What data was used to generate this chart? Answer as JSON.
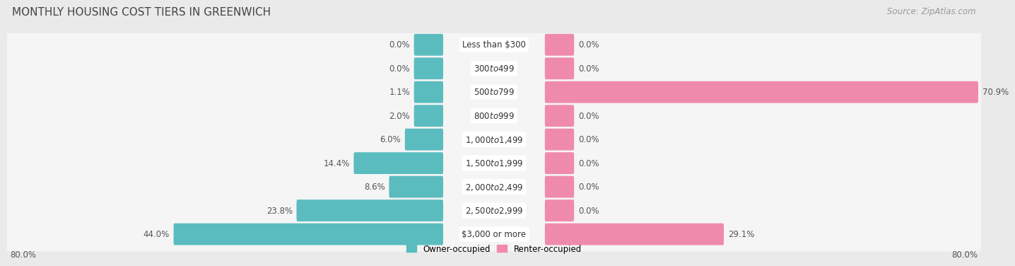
{
  "title": "MONTHLY HOUSING COST TIERS IN GREENWICH",
  "source": "Source: ZipAtlas.com",
  "categories": [
    "Less than $300",
    "$300 to $499",
    "$500 to $799",
    "$800 to $999",
    "$1,000 to $1,499",
    "$1,500 to $1,999",
    "$2,000 to $2,499",
    "$2,500 to $2,999",
    "$3,000 or more"
  ],
  "owner_values": [
    0.0,
    0.0,
    1.1,
    2.0,
    6.0,
    14.4,
    8.6,
    23.8,
    44.0
  ],
  "renter_values": [
    0.0,
    0.0,
    70.9,
    0.0,
    0.0,
    0.0,
    0.0,
    0.0,
    29.1
  ],
  "owner_color": "#5bbcbf",
  "renter_color": "#f08aac",
  "axis_limit": 80.0,
  "x_left_label": "80.0%",
  "x_right_label": "80.0%",
  "background_color": "#eaeaea",
  "row_bg_color": "#f5f5f5",
  "title_fontsize": 11,
  "source_fontsize": 8.5,
  "label_fontsize": 8.5,
  "category_fontsize": 8.5,
  "stub_size": 4.5
}
